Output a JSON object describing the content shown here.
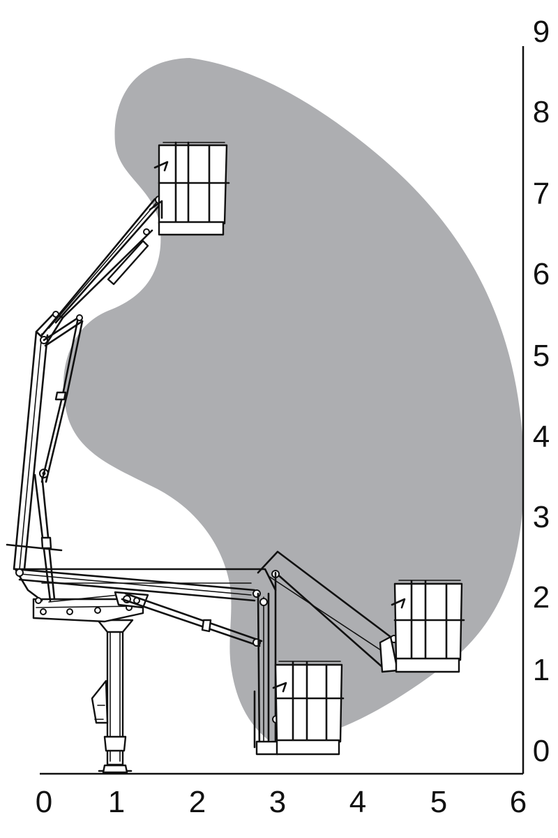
{
  "chart_data": {
    "type": "diagram",
    "title": "",
    "xlabel": "",
    "ylabel": "",
    "x_ticks": [
      "0",
      "1",
      "2",
      "3",
      "4",
      "5",
      "6"
    ],
    "y_ticks": [
      "0",
      "1",
      "2",
      "3",
      "4",
      "5",
      "6",
      "7",
      "8",
      "9"
    ],
    "xlim": [
      0,
      6
    ],
    "ylim": [
      0,
      9
    ],
    "y_axis_side": "right",
    "colors": {
      "working_envelope": "#adaeb1",
      "line": "#111111"
    },
    "basket_positions": [
      {
        "id": "maximum-height",
        "x": 1.85,
        "y": 7.0
      },
      {
        "id": "maximum-outreach",
        "x": 4.75,
        "y": 1.35
      },
      {
        "id": "stowed-low",
        "x": 3.35,
        "y": 0.3
      }
    ]
  }
}
